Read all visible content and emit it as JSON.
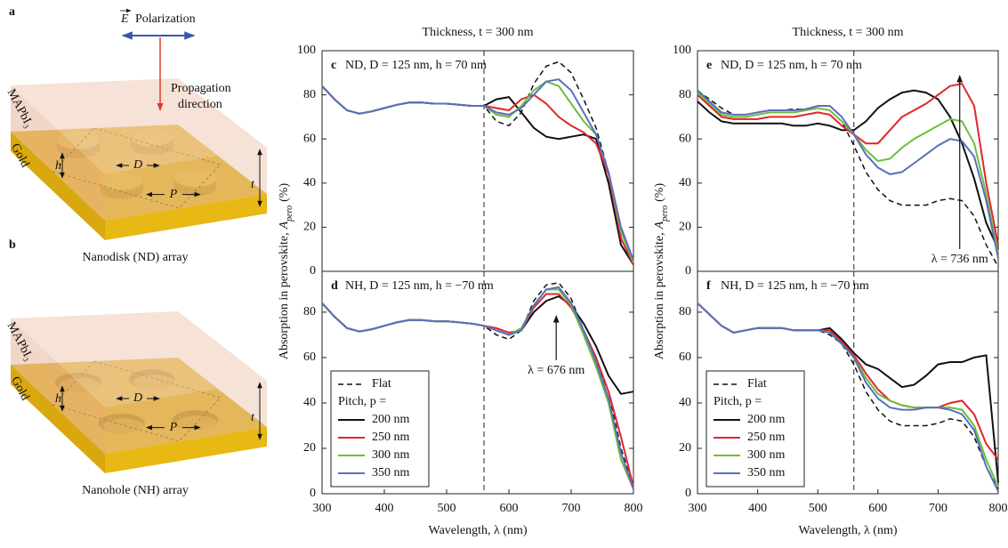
{
  "schematic": {
    "a": {
      "label": "a",
      "field": "E",
      "polarization": "Polarization",
      "propagation": "Propagation",
      "direction": "direction",
      "layer": "MAPbI₃",
      "substrate": "Gold",
      "h": "h",
      "d": "D",
      "p": "P",
      "t": "t",
      "caption": "Nanodisk (ND) array"
    },
    "b": {
      "label": "b",
      "layer": "MAPbI₃",
      "substrate": "Gold",
      "h": "h",
      "d": "D",
      "p": "P",
      "t": "t",
      "caption": "Nanohole (NH) array"
    }
  },
  "chart_data": [
    {
      "type": "line",
      "panel": "c",
      "top_title": "Thickness, t = 300 nm",
      "title": "ND, D = 125 nm, h = 70 nm",
      "y_label": [
        "Absorption in perovskite,",
        "A",
        "pero",
        "(%)"
      ],
      "x": [
        300,
        320,
        340,
        360,
        380,
        400,
        420,
        440,
        460,
        480,
        500,
        520,
        540,
        560,
        580,
        600,
        620,
        640,
        660,
        680,
        700,
        720,
        740,
        760,
        780,
        800
      ],
      "xlim": [
        300,
        800
      ],
      "ylim": [
        0,
        100
      ],
      "yticks": [
        0,
        20,
        40,
        60,
        80,
        100
      ],
      "marker_x": 560,
      "series": [
        {
          "color": "#111111",
          "dash": "dashed",
          "values": [
            84,
            78,
            73,
            71.5,
            72.5,
            74,
            75.5,
            76.5,
            76.5,
            76,
            76,
            75.5,
            75,
            75,
            68,
            66,
            72,
            85,
            93,
            95,
            90,
            78,
            65,
            45,
            18,
            4
          ]
        },
        {
          "color": "#111111",
          "values": [
            84,
            78,
            73,
            71.5,
            72.5,
            74,
            75.5,
            76.5,
            76.5,
            76,
            76,
            75.5,
            75,
            75,
            78,
            79,
            72,
            65,
            61,
            60,
            61,
            62,
            60,
            40,
            12,
            3
          ]
        },
        {
          "color": "#e0262b",
          "values": [
            84,
            78,
            73,
            71.5,
            72.5,
            74,
            75.5,
            76.5,
            76.5,
            76,
            76,
            75.5,
            75,
            75,
            74,
            73,
            78,
            80,
            76,
            70,
            66,
            63,
            58,
            44,
            15,
            3
          ]
        },
        {
          "color": "#6bbf3b",
          "values": [
            84,
            78,
            73,
            71.5,
            72.5,
            74,
            75.5,
            76.5,
            76.5,
            76,
            76,
            75.5,
            75,
            75,
            71,
            70,
            75,
            82,
            86,
            84,
            76,
            68,
            62,
            45,
            18,
            4
          ]
        },
        {
          "color": "#5a6fc0",
          "values": [
            84,
            78,
            73,
            71.5,
            72.5,
            74,
            75.5,
            76.5,
            76.5,
            76,
            76,
            75.5,
            75,
            75,
            72,
            71,
            74,
            80,
            86,
            87,
            82,
            72,
            62,
            45,
            20,
            5
          ]
        }
      ]
    },
    {
      "type": "line",
      "panel": "d",
      "title": "NH, D = 125 nm, h = −70 nm",
      "x_label": "Wavelength, λ (nm)",
      "x": [
        300,
        320,
        340,
        360,
        380,
        400,
        420,
        440,
        460,
        480,
        500,
        520,
        540,
        560,
        580,
        600,
        620,
        640,
        660,
        680,
        700,
        720,
        740,
        760,
        780,
        800
      ],
      "xlim": [
        300,
        800
      ],
      "ylim": [
        0,
        98
      ],
      "xticks": [
        300,
        400,
        500,
        600,
        700,
        800
      ],
      "yticks": [
        0,
        20,
        40,
        60,
        80
      ],
      "marker_x": 560,
      "legend": "lower left",
      "legend_title": "Pitch, p =",
      "annotation": {
        "text": "λ = 676 nm",
        "x": 676
      },
      "series": [
        {
          "name": "Flat",
          "color": "#111111",
          "dash": "dashed",
          "values": [
            84,
            78,
            73,
            71.5,
            72.5,
            74,
            75.5,
            76.5,
            76.5,
            76,
            76,
            75.5,
            75,
            74,
            70,
            68,
            72,
            85,
            92,
            93,
            86,
            72,
            58,
            45,
            20,
            3
          ]
        },
        {
          "name": "200 nm",
          "color": "#111111",
          "values": [
            84,
            78,
            73,
            71.5,
            72.5,
            74,
            75.5,
            76.5,
            76.5,
            76,
            76,
            75.5,
            75,
            74,
            72,
            70,
            72,
            80,
            85,
            87,
            83,
            75,
            65,
            52,
            44,
            45
          ]
        },
        {
          "name": "250 nm",
          "color": "#e0262b",
          "values": [
            84,
            78,
            73,
            71.5,
            72.5,
            74,
            75.5,
            76.5,
            76.5,
            76,
            76,
            75.5,
            75,
            74,
            73,
            71,
            72,
            82,
            88,
            88,
            82,
            72,
            60,
            45,
            25,
            3
          ]
        },
        {
          "name": "300 nm",
          "color": "#6bbf3b",
          "values": [
            84,
            78,
            73,
            71.5,
            72.5,
            74,
            75.5,
            76.5,
            76.5,
            76,
            76,
            75.5,
            75,
            74,
            72,
            70,
            73,
            83,
            90,
            90,
            83,
            70,
            56,
            40,
            15,
            2
          ]
        },
        {
          "name": "350 nm",
          "color": "#5a6fc0",
          "values": [
            84,
            78,
            73,
            71.5,
            72.5,
            74,
            75.5,
            76.5,
            76.5,
            76,
            76,
            75.5,
            75,
            74,
            72,
            70,
            72,
            83,
            90,
            91,
            84,
            72,
            58,
            42,
            18,
            2
          ]
        }
      ]
    },
    {
      "type": "line",
      "panel": "e",
      "top_title": "Thickness, t = 300 nm",
      "title": "ND, D = 125 nm, h = 70 nm",
      "y_label": [
        "Absorption in perovskite,",
        "A",
        "pero",
        "(%)"
      ],
      "x": [
        300,
        320,
        340,
        360,
        380,
        400,
        420,
        440,
        460,
        480,
        500,
        520,
        540,
        560,
        580,
        600,
        620,
        640,
        660,
        680,
        700,
        720,
        740,
        760,
        780,
        800
      ],
      "xlim": [
        300,
        800
      ],
      "ylim": [
        0,
        100
      ],
      "yticks": [
        0,
        20,
        40,
        60,
        80,
        100
      ],
      "marker_x": 560,
      "annotation": {
        "text": "λ = 736 nm",
        "x": 736
      },
      "series": [
        {
          "color": "#111111",
          "dash": "dashed",
          "values": [
            82,
            78,
            74,
            71,
            71,
            72,
            73,
            73,
            73.5,
            73.5,
            74,
            73,
            68,
            57,
            45,
            37,
            32,
            30,
            30,
            30,
            32,
            33,
            32,
            25,
            12,
            2
          ]
        },
        {
          "color": "#111111",
          "values": [
            77,
            72,
            68,
            67,
            67,
            67,
            67,
            67,
            66,
            66,
            67,
            66,
            64,
            64,
            68,
            74,
            78,
            81,
            82,
            81,
            78,
            70,
            58,
            42,
            22,
            10
          ]
        },
        {
          "color": "#e0262b",
          "values": [
            80,
            75,
            70,
            69,
            69,
            69,
            70,
            70,
            70,
            71,
            72,
            71,
            66,
            62,
            58,
            58,
            64,
            70,
            73,
            76,
            80,
            84,
            85,
            75,
            40,
            12
          ]
        },
        {
          "color": "#6bbf3b",
          "values": [
            81,
            76,
            71,
            70,
            70,
            71,
            72,
            72,
            72,
            73,
            74,
            73,
            68,
            62,
            55,
            50,
            51,
            56,
            60,
            63,
            66,
            69,
            68,
            58,
            35,
            8
          ]
        },
        {
          "color": "#5a6fc0",
          "values": [
            82,
            77,
            72,
            71,
            71,
            72,
            73,
            73,
            73,
            73.5,
            75,
            75,
            70,
            62,
            53,
            47,
            44,
            45,
            49,
            53,
            57,
            60,
            59,
            52,
            32,
            6
          ]
        }
      ]
    },
    {
      "type": "line",
      "panel": "f",
      "title": "NH, D = 125 nm, h = −70 nm",
      "x_label": "Wavelength, λ (nm)",
      "x": [
        300,
        320,
        340,
        360,
        380,
        400,
        420,
        440,
        460,
        480,
        500,
        520,
        540,
        560,
        580,
        600,
        620,
        640,
        660,
        680,
        700,
        720,
        740,
        760,
        780,
        800
      ],
      "xlim": [
        300,
        800
      ],
      "ylim": [
        0,
        98
      ],
      "xticks": [
        300,
        400,
        500,
        600,
        700,
        800
      ],
      "yticks": [
        0,
        20,
        40,
        60,
        80
      ],
      "marker_x": 560,
      "legend": "lower left",
      "legend_title": "Pitch, p =",
      "series": [
        {
          "name": "Flat",
          "color": "#111111",
          "dash": "dashed",
          "values": [
            84,
            79,
            74,
            71,
            72,
            73,
            73,
            73,
            72,
            72,
            72,
            70,
            66,
            57,
            45,
            37,
            32,
            30,
            30,
            30,
            31,
            33,
            32,
            25,
            12,
            2
          ]
        },
        {
          "name": "200 nm",
          "color": "#111111",
          "values": [
            84,
            79,
            74,
            71,
            72,
            73,
            73,
            73,
            72,
            72,
            72,
            73,
            68,
            62,
            57,
            55,
            51,
            47,
            48,
            52,
            57,
            58,
            58,
            60,
            61,
            5
          ]
        },
        {
          "name": "250 nm",
          "color": "#e0262b",
          "values": [
            84,
            79,
            74,
            71,
            72,
            73,
            73,
            73,
            72,
            72,
            72,
            72,
            67,
            61,
            53,
            46,
            41,
            39,
            38,
            38,
            38,
            40,
            41,
            35,
            22,
            15
          ]
        },
        {
          "name": "300 nm",
          "color": "#6bbf3b",
          "values": [
            84,
            79,
            74,
            71,
            72,
            73,
            73,
            73,
            72,
            72,
            72,
            71,
            66,
            60,
            51,
            44,
            41,
            39,
            38,
            38,
            38,
            38,
            37,
            30,
            15,
            3
          ]
        },
        {
          "name": "350 nm",
          "color": "#5a6fc0",
          "values": [
            84,
            79,
            74,
            71,
            72,
            73,
            73,
            73,
            72,
            72,
            72,
            71,
            66,
            60,
            49,
            42,
            38,
            37,
            37,
            38,
            38,
            37,
            35,
            28,
            12,
            1
          ]
        }
      ]
    }
  ]
}
